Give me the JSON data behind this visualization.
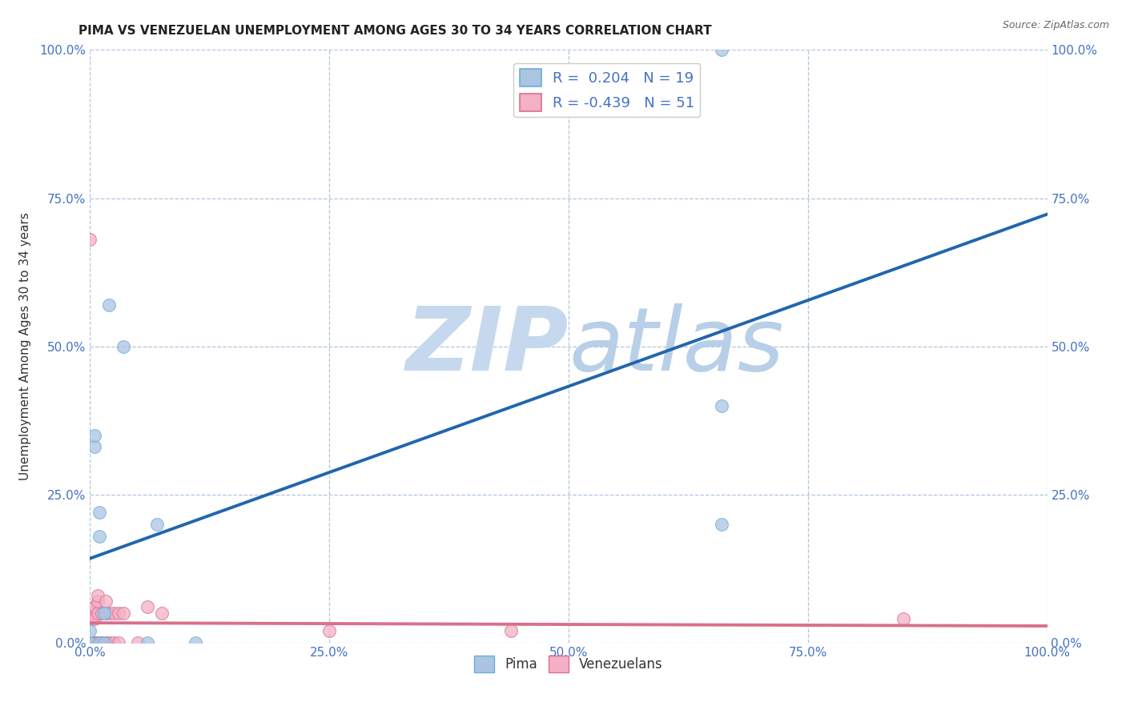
{
  "title": "PIMA VS VENEZUELAN UNEMPLOYMENT AMONG AGES 30 TO 34 YEARS CORRELATION CHART",
  "source": "Source: ZipAtlas.com",
  "ylabel": "Unemployment Among Ages 30 to 34 years",
  "xlim": [
    0.0,
    1.0
  ],
  "ylim": [
    0.0,
    1.0
  ],
  "xtick_labels": [
    "0.0%",
    "",
    "25.0%",
    "",
    "50.0%",
    "",
    "75.0%",
    "",
    "100.0%"
  ],
  "xtick_vals": [
    0.0,
    0.125,
    0.25,
    0.375,
    0.5,
    0.625,
    0.75,
    0.875,
    1.0
  ],
  "xtick_major_labels": [
    "0.0%",
    "25.0%",
    "50.0%",
    "75.0%",
    "100.0%"
  ],
  "xtick_major_vals": [
    0.0,
    0.25,
    0.5,
    0.75,
    1.0
  ],
  "ytick_labels": [
    "0.0%",
    "25.0%",
    "50.0%",
    "75.0%",
    "100.0%"
  ],
  "ytick_vals": [
    0.0,
    0.25,
    0.5,
    0.75,
    1.0
  ],
  "pima_color": "#aac4e2",
  "pima_edge_color": "#6baed6",
  "venezuelan_color": "#f4b0c5",
  "venezuelan_edge_color": "#d97090",
  "pima_line_color": "#2166ac",
  "venezuelan_line_color": "#d9708a",
  "pima_R": 0.204,
  "pima_N": 19,
  "venezuelan_R": -0.439,
  "venezuelan_N": 51,
  "pima_points": [
    [
      0.0,
      0.0
    ],
    [
      0.0,
      0.0
    ],
    [
      0.0,
      0.02
    ],
    [
      0.005,
      0.33
    ],
    [
      0.005,
      0.35
    ],
    [
      0.01,
      0.0
    ],
    [
      0.01,
      0.18
    ],
    [
      0.01,
      0.22
    ],
    [
      0.015,
      0.0
    ],
    [
      0.015,
      0.05
    ],
    [
      0.015,
      0.05
    ],
    [
      0.02,
      0.57
    ],
    [
      0.035,
      0.5
    ],
    [
      0.06,
      0.0
    ],
    [
      0.07,
      0.2
    ],
    [
      0.11,
      0.0
    ],
    [
      0.66,
      0.2
    ],
    [
      0.66,
      0.4
    ],
    [
      0.66,
      1.0
    ]
  ],
  "venezuelan_points": [
    [
      0.0,
      0.0
    ],
    [
      0.0,
      0.0
    ],
    [
      0.0,
      0.0
    ],
    [
      0.0,
      0.0
    ],
    [
      0.0,
      0.0
    ],
    [
      0.0,
      0.0
    ],
    [
      0.0,
      0.0
    ],
    [
      0.0,
      0.0
    ],
    [
      0.0,
      0.0
    ],
    [
      0.0,
      0.0
    ],
    [
      0.0,
      0.0
    ],
    [
      0.0,
      0.0
    ],
    [
      0.0,
      0.0
    ],
    [
      0.002,
      0.04
    ],
    [
      0.002,
      0.05
    ],
    [
      0.005,
      0.0
    ],
    [
      0.005,
      0.0
    ],
    [
      0.005,
      0.0
    ],
    [
      0.005,
      0.0
    ],
    [
      0.005,
      0.04
    ],
    [
      0.005,
      0.06
    ],
    [
      0.005,
      0.06
    ],
    [
      0.008,
      0.0
    ],
    [
      0.008,
      0.0
    ],
    [
      0.008,
      0.0
    ],
    [
      0.008,
      0.05
    ],
    [
      0.008,
      0.07
    ],
    [
      0.008,
      0.08
    ],
    [
      0.012,
      0.0
    ],
    [
      0.012,
      0.0
    ],
    [
      0.012,
      0.0
    ],
    [
      0.012,
      0.05
    ],
    [
      0.016,
      0.0
    ],
    [
      0.016,
      0.0
    ],
    [
      0.016,
      0.05
    ],
    [
      0.016,
      0.07
    ],
    [
      0.02,
      0.0
    ],
    [
      0.02,
      0.0
    ],
    [
      0.02,
      0.05
    ],
    [
      0.025,
      0.0
    ],
    [
      0.025,
      0.05
    ],
    [
      0.03,
      0.0
    ],
    [
      0.03,
      0.05
    ],
    [
      0.035,
      0.05
    ],
    [
      0.05,
      0.0
    ],
    [
      0.06,
      0.06
    ],
    [
      0.075,
      0.05
    ],
    [
      0.25,
      0.02
    ],
    [
      0.44,
      0.02
    ],
    [
      0.85,
      0.04
    ],
    [
      0.0,
      0.68
    ]
  ],
  "background_color": "#ffffff",
  "grid_color": "#b0c4de",
  "watermark_zip": "ZIP",
  "watermark_atlas": "atlas",
  "watermark_color": "#d0e4f5",
  "legend_fontsize": 13,
  "title_fontsize": 11,
  "axis_label_fontsize": 11,
  "tick_fontsize": 11,
  "marker_size": 130
}
